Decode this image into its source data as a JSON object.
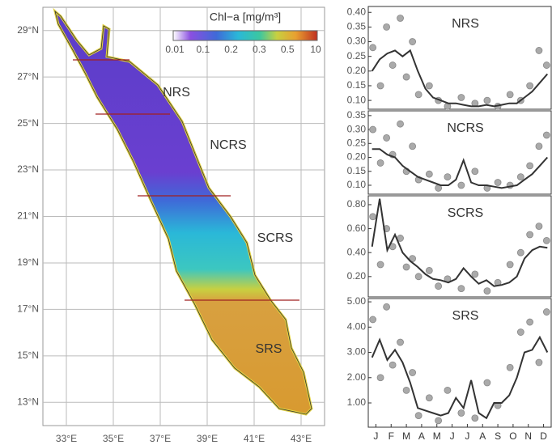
{
  "chart_data": [
    {
      "type": "map",
      "colorbar_label": "Chl−a [mg/m³]",
      "colorbar_ticks": [
        0.01,
        0.1,
        0.2,
        0.3,
        0.5,
        10
      ],
      "regions": [
        "NRS",
        "NCRS",
        "SCRS",
        "SRS"
      ],
      "xlim": [
        32,
        44
      ],
      "xticks": [
        {
          "value": 33,
          "label": "33°E"
        },
        {
          "value": 35,
          "label": "35°E"
        },
        {
          "value": 37,
          "label": "37°E"
        },
        {
          "value": 39,
          "label": "39°E"
        },
        {
          "value": 41,
          "label": "41°E"
        },
        {
          "value": 43,
          "label": "43°E"
        }
      ],
      "ylim": [
        12,
        30
      ],
      "yticks": [
        {
          "value": 13,
          "label": "13°N"
        },
        {
          "value": 15,
          "label": "15°N"
        },
        {
          "value": 17,
          "label": "17°N"
        },
        {
          "value": 19,
          "label": "19°N"
        },
        {
          "value": 21,
          "label": "21°N"
        },
        {
          "value": 23,
          "label": "23°N"
        },
        {
          "value": 25,
          "label": "25°N"
        },
        {
          "value": 27,
          "label": "27°N"
        },
        {
          "value": 29,
          "label": "29°N"
        }
      ],
      "grid": true
    },
    {
      "type": "line",
      "title": "NRS",
      "color": "#333333",
      "point_color": "#aaaaaa",
      "xlim": [
        0,
        12
      ],
      "ylim": [
        0.07,
        0.42
      ],
      "yticks": [
        {
          "value": 0.1,
          "label": "0.10"
        },
        {
          "value": 0.15,
          "label": "0.15"
        },
        {
          "value": 0.2,
          "label": "0.20"
        },
        {
          "value": 0.25,
          "label": "0.25"
        },
        {
          "value": 0.3,
          "label": "0.30"
        },
        {
          "value": 0.35,
          "label": "0.35"
        },
        {
          "value": 0.4,
          "label": "0.40"
        }
      ],
      "x": [
        0.25,
        0.75,
        1.25,
        1.75,
        2.25,
        2.75,
        3.25,
        3.75,
        4.25,
        4.75,
        5.25,
        5.75,
        6.25,
        6.75,
        7.25,
        7.75,
        8.25,
        8.75,
        9.25,
        9.75,
        10.25,
        10.75,
        11.25,
        11.75
      ],
      "values": [
        0.2,
        0.24,
        0.26,
        0.27,
        0.25,
        0.27,
        0.2,
        0.14,
        0.11,
        0.1,
        0.09,
        0.09,
        0.085,
        0.08,
        0.08,
        0.085,
        0.08,
        0.085,
        0.09,
        0.09,
        0.11,
        0.13,
        0.16,
        0.19
      ],
      "points": {
        "x": [
          0.3,
          0.8,
          1.2,
          1.6,
          2.1,
          2.5,
          2.9,
          3.3,
          4.0,
          4.6,
          5.2,
          6.1,
          7.0,
          7.8,
          8.5,
          9.3,
          10.0,
          10.6,
          11.2,
          11.7
        ],
        "y": [
          0.28,
          0.15,
          0.35,
          0.22,
          0.38,
          0.18,
          0.3,
          0.12,
          0.15,
          0.1,
          0.08,
          0.11,
          0.09,
          0.1,
          0.08,
          0.12,
          0.1,
          0.15,
          0.27,
          0.22
        ]
      }
    },
    {
      "type": "line",
      "title": "NCRS",
      "color": "#333333",
      "point_color": "#aaaaaa",
      "xlim": [
        0,
        12
      ],
      "ylim": [
        0.068,
        0.367
      ],
      "yticks": [
        {
          "value": 0.1,
          "label": "0.10"
        },
        {
          "value": 0.15,
          "label": "0.15"
        },
        {
          "value": 0.2,
          "label": "0.20"
        },
        {
          "value": 0.25,
          "label": "0.25"
        },
        {
          "value": 0.3,
          "label": "0.30"
        },
        {
          "value": 0.35,
          "label": "0.35"
        }
      ],
      "x": [
        0.25,
        0.75,
        1.25,
        1.75,
        2.25,
        2.75,
        3.25,
        3.75,
        4.25,
        4.75,
        5.25,
        5.75,
        6.25,
        6.75,
        7.25,
        7.75,
        8.25,
        8.75,
        9.25,
        9.75,
        10.25,
        10.75,
        11.25,
        11.75
      ],
      "values": [
        0.23,
        0.23,
        0.21,
        0.2,
        0.17,
        0.15,
        0.13,
        0.12,
        0.11,
        0.1,
        0.1,
        0.12,
        0.19,
        0.11,
        0.1,
        0.1,
        0.095,
        0.09,
        0.095,
        0.1,
        0.12,
        0.14,
        0.17,
        0.2
      ],
      "points": {
        "x": [
          0.3,
          0.8,
          1.2,
          1.6,
          2.1,
          2.5,
          2.9,
          3.3,
          4.0,
          4.6,
          5.2,
          6.1,
          7.0,
          7.8,
          8.5,
          9.3,
          10.0,
          10.6,
          11.2,
          11.7
        ],
        "y": [
          0.3,
          0.18,
          0.27,
          0.21,
          0.32,
          0.15,
          0.24,
          0.12,
          0.14,
          0.09,
          0.13,
          0.1,
          0.15,
          0.09,
          0.11,
          0.1,
          0.13,
          0.17,
          0.24,
          0.28
        ]
      }
    },
    {
      "type": "line",
      "title": "SCRS",
      "color": "#333333",
      "point_color": "#aaaaaa",
      "xlim": [
        0,
        12
      ],
      "ylim": [
        0.03,
        0.874
      ],
      "yticks": [
        {
          "value": 0.2,
          "label": "0.20"
        },
        {
          "value": 0.4,
          "label": "0.40"
        },
        {
          "value": 0.6,
          "label": "0.60"
        },
        {
          "value": 0.8,
          "label": "0.80"
        }
      ],
      "x": [
        0.25,
        0.75,
        1.25,
        1.75,
        2.25,
        2.75,
        3.25,
        3.75,
        4.25,
        4.75,
        5.25,
        5.75,
        6.25,
        6.75,
        7.25,
        7.75,
        8.25,
        8.75,
        9.25,
        9.75,
        10.25,
        10.75,
        11.25,
        11.75
      ],
      "values": [
        0.45,
        0.85,
        0.42,
        0.55,
        0.4,
        0.33,
        0.28,
        0.22,
        0.18,
        0.17,
        0.15,
        0.18,
        0.27,
        0.2,
        0.14,
        0.17,
        0.12,
        0.13,
        0.15,
        0.2,
        0.35,
        0.42,
        0.45,
        0.44
      ],
      "points": {
        "x": [
          0.3,
          0.8,
          1.2,
          1.6,
          2.1,
          2.5,
          2.9,
          3.3,
          4.0,
          4.6,
          5.2,
          6.1,
          7.0,
          7.8,
          8.5,
          9.3,
          10.0,
          10.6,
          11.2,
          11.7
        ],
        "y": [
          0.7,
          0.3,
          0.6,
          0.45,
          0.52,
          0.28,
          0.35,
          0.2,
          0.25,
          0.12,
          0.18,
          0.1,
          0.22,
          0.08,
          0.15,
          0.3,
          0.4,
          0.55,
          0.62,
          0.5
        ]
      }
    },
    {
      "type": "line",
      "title": "SRS",
      "color": "#333333",
      "point_color": "#aaaaaa",
      "xlim": [
        0,
        12
      ],
      "ylim": [
        0.04,
        5.13
      ],
      "yticks": [
        {
          "value": 1,
          "label": "1.00"
        },
        {
          "value": 2,
          "label": "2.00"
        },
        {
          "value": 3,
          "label": "3.00"
        },
        {
          "value": 4,
          "label": "4.00"
        },
        {
          "value": 5,
          "label": "5.00"
        }
      ],
      "xticks": [
        {
          "value": 0.5,
          "label": "J"
        },
        {
          "value": 1.5,
          "label": "F"
        },
        {
          "value": 2.5,
          "label": "M"
        },
        {
          "value": 3.5,
          "label": "A"
        },
        {
          "value": 4.5,
          "label": "M"
        },
        {
          "value": 5.5,
          "label": "J"
        },
        {
          "value": 6.5,
          "label": "J"
        },
        {
          "value": 7.5,
          "label": "A"
        },
        {
          "value": 8.5,
          "label": "S"
        },
        {
          "value": 9.5,
          "label": "O"
        },
        {
          "value": 10.5,
          "label": "N"
        },
        {
          "value": 11.5,
          "label": "D"
        }
      ],
      "x": [
        0.25,
        0.75,
        1.25,
        1.75,
        2.25,
        2.75,
        3.25,
        3.75,
        4.25,
        4.75,
        5.25,
        5.75,
        6.25,
        6.75,
        7.25,
        7.75,
        8.25,
        8.75,
        9.25,
        9.75,
        10.25,
        10.75,
        11.25,
        11.75
      ],
      "values": [
        2.8,
        3.5,
        2.7,
        3.1,
        2.6,
        1.8,
        0.8,
        0.7,
        0.6,
        0.5,
        0.6,
        1.2,
        0.8,
        1.9,
        0.6,
        0.4,
        1.0,
        1.0,
        1.3,
        2.0,
        3.0,
        3.1,
        3.6,
        3.0
      ],
      "points": {
        "x": [
          0.3,
          0.8,
          1.2,
          1.6,
          2.1,
          2.5,
          2.9,
          3.3,
          4.0,
          4.6,
          5.2,
          6.1,
          7.0,
          7.8,
          8.5,
          9.3,
          10.0,
          10.6,
          11.2,
          11.7
        ],
        "y": [
          4.3,
          2.0,
          4.8,
          2.5,
          3.4,
          1.5,
          2.2,
          0.5,
          1.2,
          0.3,
          1.5,
          0.6,
          0.4,
          1.8,
          0.9,
          2.4,
          3.8,
          4.2,
          2.6,
          4.6
        ]
      }
    }
  ]
}
